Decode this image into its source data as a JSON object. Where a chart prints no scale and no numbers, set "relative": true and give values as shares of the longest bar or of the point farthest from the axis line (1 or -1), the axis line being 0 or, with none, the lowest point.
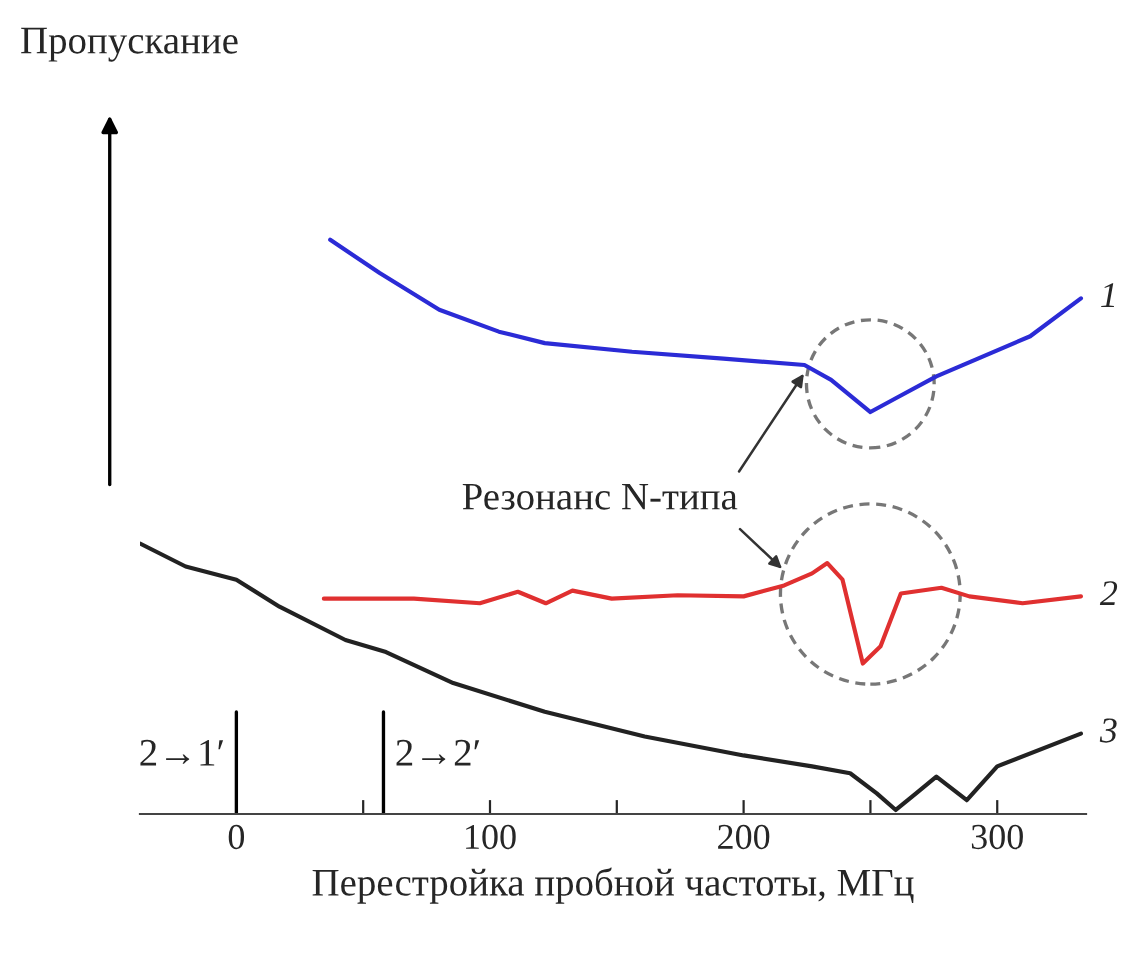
{
  "chart_data": {
    "type": "line",
    "relative": true,
    "ylabel": "Пропускание",
    "xlabel": "Перестройка пробной частоты, МГц",
    "xlim": [
      -38,
      335
    ],
    "xticks": [
      0,
      {
        "value": 50,
        "label": null
      },
      100,
      {
        "value": 150,
        "label": null
      },
      200,
      {
        "value": 250,
        "label": null
      },
      300
    ],
    "grid": false,
    "tick_labels": "x",
    "annotations": [
      "Резонанс N-типа"
    ],
    "ref_lines": [
      {
        "axis": "x",
        "value": 0,
        "label": "2→1′",
        "color": "#000000"
      },
      {
        "axis": "x",
        "value": 58,
        "label": "2→2′",
        "color": "#000000"
      }
    ],
    "series": [
      {
        "name": "1",
        "color": "#2b2bd6",
        "x": [
          37,
          56.5,
          80,
          103.5,
          121.6,
          156,
          192,
          224,
          234.5,
          250,
          260,
          276,
          313,
          333
        ],
        "values": [
          1.0,
          0.942,
          0.878,
          0.84,
          0.82,
          0.805,
          0.793,
          0.782,
          0.756,
          0.7,
          0.724,
          0.762,
          0.832,
          0.898
        ]
      },
      {
        "name": "2",
        "color": "#e03030",
        "x": [
          34.5,
          70,
          96,
          111,
          122,
          132.5,
          148,
          174,
          200,
          216,
          227,
          233,
          239,
          247,
          254,
          262,
          278,
          289,
          310,
          333
        ],
        "values": [
          0.375,
          0.375,
          0.367,
          0.387,
          0.367,
          0.389,
          0.375,
          0.381,
          0.379,
          0.398,
          0.419,
          0.437,
          0.408,
          0.262,
          0.292,
          0.384,
          0.394,
          0.379,
          0.367,
          0.379
        ]
      },
      {
        "name": "3",
        "color": "#222222",
        "x": [
          -38,
          -20,
          0,
          17,
          43,
          59,
          85.5,
          121.6,
          161,
          200,
          227,
          242,
          252.5,
          260,
          268,
          276,
          288,
          300,
          333
        ],
        "values": [
          0.471,
          0.431,
          0.408,
          0.361,
          0.303,
          0.282,
          0.228,
          0.178,
          0.135,
          0.102,
          0.083,
          0.071,
          0.036,
          0.007,
          0.036,
          0.065,
          0.024,
          0.083,
          0.14
        ]
      }
    ]
  }
}
